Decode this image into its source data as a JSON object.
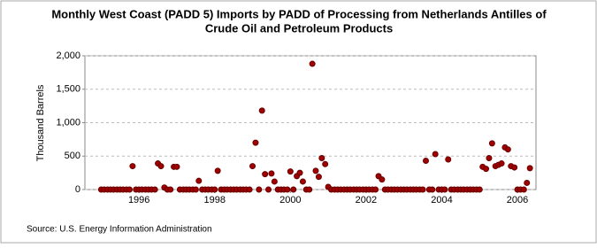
{
  "chart_data": {
    "type": "scatter",
    "title": [
      "Monthly West Coast (PADD 5) Imports by PADD of Processing from Netherlands Antilles of",
      "Crude Oil and Petroleum Products"
    ],
    "y_label": "Thousand Barrels",
    "source": "Source: U.S. Energy Information Administration",
    "color": "#a00000",
    "x": [
      1995.0,
      1995.08,
      1995.17,
      1995.25,
      1995.33,
      1995.42,
      1995.5,
      1995.58,
      1995.67,
      1995.75,
      1995.83,
      1995.92,
      1996.0,
      1996.08,
      1996.17,
      1996.25,
      1996.33,
      1996.42,
      1996.5,
      1996.58,
      1996.67,
      1996.75,
      1996.83,
      1996.92,
      1997.0,
      1997.08,
      1997.17,
      1997.25,
      1997.33,
      1997.42,
      1997.5,
      1997.58,
      1997.67,
      1997.75,
      1997.83,
      1997.92,
      1998.0,
      1998.08,
      1998.17,
      1998.25,
      1998.33,
      1998.42,
      1998.5,
      1998.58,
      1998.67,
      1998.75,
      1998.83,
      1998.92,
      1999.0,
      1999.08,
      1999.17,
      1999.25,
      1999.33,
      1999.42,
      1999.5,
      1999.58,
      1999.67,
      1999.75,
      1999.83,
      1999.92,
      2000.0,
      2000.08,
      2000.17,
      2000.25,
      2000.33,
      2000.42,
      2000.5,
      2000.58,
      2000.67,
      2000.75,
      2000.83,
      2000.92,
      2001.0,
      2001.08,
      2001.17,
      2001.25,
      2001.33,
      2001.42,
      2001.5,
      2001.58,
      2001.67,
      2001.75,
      2001.83,
      2001.92,
      2002.0,
      2002.08,
      2002.17,
      2002.25,
      2002.33,
      2002.42,
      2002.5,
      2002.58,
      2002.67,
      2002.75,
      2002.83,
      2002.92,
      2003.0,
      2003.08,
      2003.17,
      2003.25,
      2003.33,
      2003.42,
      2003.5,
      2003.58,
      2003.67,
      2003.75,
      2003.83,
      2003.92,
      2004.0,
      2004.08,
      2004.17,
      2004.25,
      2004.33,
      2004.42,
      2004.5,
      2004.58,
      2004.67,
      2004.75,
      2004.83,
      2004.92,
      2005.0,
      2005.08,
      2005.17,
      2005.25,
      2005.33,
      2005.42,
      2005.5,
      2005.58,
      2005.67,
      2005.75,
      2005.83,
      2005.92,
      2006.0,
      2006.08,
      2006.17,
      2006.25,
      2006.33
    ],
    "values": [
      0,
      0,
      0,
      0,
      0,
      0,
      0,
      0,
      0,
      0,
      350,
      0,
      0,
      0,
      0,
      0,
      0,
      0,
      390,
      350,
      30,
      0,
      0,
      340,
      340,
      0,
      0,
      0,
      0,
      0,
      0,
      130,
      0,
      0,
      0,
      0,
      0,
      280,
      0,
      0,
      0,
      0,
      0,
      0,
      0,
      0,
      0,
      0,
      350,
      700,
      0,
      1180,
      230,
      0,
      240,
      120,
      0,
      0,
      0,
      0,
      270,
      0,
      200,
      250,
      120,
      0,
      0,
      1880,
      280,
      190,
      470,
      380,
      40,
      0,
      0,
      0,
      0,
      0,
      0,
      0,
      0,
      0,
      0,
      0,
      0,
      0,
      0,
      0,
      200,
      150,
      0,
      0,
      0,
      0,
      0,
      0,
      0,
      0,
      0,
      0,
      0,
      0,
      0,
      430,
      0,
      0,
      530,
      0,
      0,
      0,
      450,
      0,
      0,
      0,
      0,
      0,
      0,
      0,
      0,
      0,
      0,
      340,
      310,
      470,
      690,
      350,
      370,
      390,
      630,
      600,
      350,
      330,
      0,
      0,
      0,
      100,
      320
    ],
    "xlim": [
      1994.57,
      2006.49
    ],
    "xticks": [
      1996,
      1998,
      2000,
      2002,
      2004,
      2006
    ],
    "ylim": [
      0,
      2000
    ],
    "yticks": [
      0,
      500,
      {
        "value": 1000,
        "label": "1,000"
      },
      {
        "value": 1500,
        "label": "1,500"
      },
      {
        "value": 2000,
        "label": "2,000"
      }
    ],
    "grid": true
  }
}
